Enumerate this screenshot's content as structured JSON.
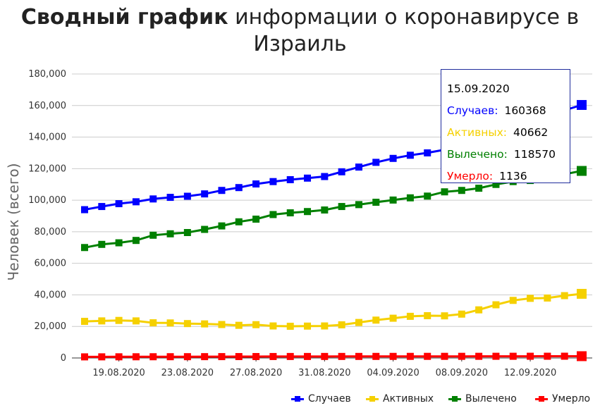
{
  "title": {
    "bold": "Сводный график",
    "rest_line1": " информации о коронавирусе в",
    "line2": "Израиль"
  },
  "chart_data": {
    "type": "line",
    "title": "Сводный график информации о коронавирусе в Израиль",
    "ylabel": "Человек (всего)",
    "xlabel": "",
    "ylim": [
      0,
      180000
    ],
    "y_ticks": [
      "0",
      "20,000",
      "40,000",
      "60,000",
      "80,000",
      "100,000",
      "120,000",
      "140,000",
      "160,000",
      "180,000"
    ],
    "x_tick_labels": [
      "19.08.2020",
      "23.08.2020",
      "27.08.2020",
      "31.08.2020",
      "04.09.2020",
      "08.09.2020",
      "12.09.2020"
    ],
    "x": [
      "17.08.2020",
      "18.08.2020",
      "19.08.2020",
      "20.08.2020",
      "21.08.2020",
      "22.08.2020",
      "23.08.2020",
      "24.08.2020",
      "25.08.2020",
      "26.08.2020",
      "27.08.2020",
      "28.08.2020",
      "29.08.2020",
      "30.08.2020",
      "31.08.2020",
      "01.09.2020",
      "02.09.2020",
      "03.09.2020",
      "04.09.2020",
      "05.09.2020",
      "06.09.2020",
      "07.09.2020",
      "08.09.2020",
      "09.09.2020",
      "10.09.2020",
      "11.09.2020",
      "12.09.2020",
      "13.09.2020",
      "14.09.2020",
      "15.09.2020"
    ],
    "grid": true,
    "legend_position": "bottom-right",
    "series": [
      {
        "name": "Случаев",
        "color": "#0000ff",
        "values": [
          94000,
          96000,
          97800,
          99000,
          100800,
          101800,
          102500,
          104000,
          106200,
          108000,
          110300,
          111800,
          113000,
          114000,
          115000,
          118000,
          121000,
          124000,
          126500,
          128500,
          130000,
          132000,
          133500,
          135500,
          138000,
          143000,
          148000,
          152000,
          157000,
          160368
        ]
      },
      {
        "name": "Активных",
        "color": "#f5d000",
        "values": [
          23200,
          23500,
          23800,
          23500,
          22300,
          22200,
          21800,
          21600,
          21200,
          20700,
          21100,
          20300,
          20100,
          20200,
          20300,
          21000,
          22500,
          24000,
          25200,
          26400,
          26800,
          26700,
          27800,
          30500,
          33700,
          36500,
          37800,
          38000,
          39500,
          40662
        ]
      },
      {
        "name": "Вылечено",
        "color": "#008000",
        "values": [
          70000,
          72000,
          73000,
          74500,
          77800,
          78700,
          79500,
          81500,
          83700,
          86300,
          88000,
          90900,
          92000,
          92800,
          93800,
          96000,
          97200,
          98700,
          100100,
          101500,
          102600,
          105300,
          106200,
          107600,
          110000,
          111800,
          112500,
          113500,
          116500,
          118570
        ]
      },
      {
        "name": "Умерло",
        "color": "#ff0000",
        "values": [
          700,
          720,
          740,
          760,
          780,
          800,
          820,
          840,
          860,
          880,
          900,
          920,
          940,
          950,
          960,
          970,
          980,
          990,
          1000,
          1010,
          1020,
          1030,
          1040,
          1050,
          1070,
          1080,
          1090,
          1100,
          1120,
          1136
        ]
      }
    ]
  },
  "tooltip": {
    "date": "15.09.2020",
    "rows": [
      {
        "label": "Случаев:",
        "value": "160368",
        "color": "#0000ff"
      },
      {
        "label": "Активных:",
        "value": "40662",
        "color": "#f5d000"
      },
      {
        "label": "Вылечено:",
        "value": "118570",
        "color": "#008000"
      },
      {
        "label": "Умерло:",
        "value": "1136",
        "color": "#ff0000"
      }
    ]
  }
}
